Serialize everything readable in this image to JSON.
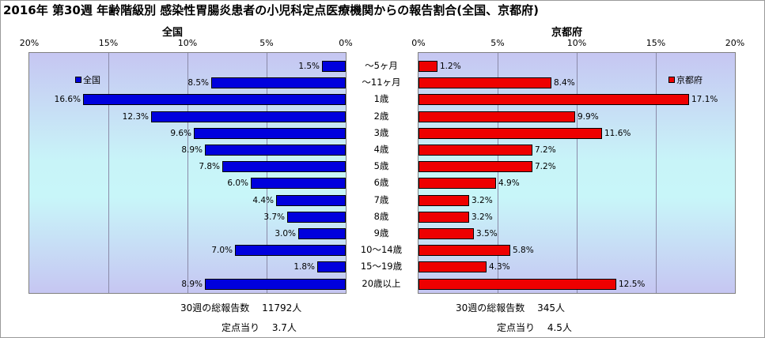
{
  "title": "2016年 第30週 年齢階級別 感染性胃腸炎患者の小児科定点医療機関からの報告割合(全国、京都府)",
  "colors": {
    "national": "#0000dd",
    "kyoto": "#ee0000"
  },
  "chart_data": [
    {
      "type": "bar",
      "orientation": "horizontal-reversed",
      "title": "全国",
      "legend": "全国",
      "legend_position": "top-left",
      "tick_labels": [
        "20%",
        "15%",
        "10%",
        "5%",
        "0%"
      ],
      "xlim": [
        0,
        20
      ],
      "categories": [
        "～5ヶ月",
        "～11ヶ月",
        "1歳",
        "2歳",
        "3歳",
        "4歳",
        "5歳",
        "6歳",
        "7歳",
        "8歳",
        "9歳",
        "10～14歳",
        "15～19歳",
        "20歳以上"
      ],
      "values": [
        1.5,
        8.5,
        16.6,
        12.3,
        9.6,
        8.9,
        7.8,
        6.0,
        4.4,
        3.7,
        3.0,
        7.0,
        1.8,
        8.9
      ],
      "value_labels": [
        "1.5%",
        "8.5%",
        "16.6%",
        "12.3%",
        "9.6%",
        "8.9%",
        "7.8%",
        "6.0%",
        "4.4%",
        "3.7%",
        "3.0%",
        "7.0%",
        "1.8%",
        "8.9%"
      ],
      "grid": true
    },
    {
      "type": "bar",
      "orientation": "horizontal",
      "title": "京都府",
      "legend": "京都府",
      "legend_position": "top-right",
      "tick_labels": [
        "0%",
        "5%",
        "10%",
        "15%",
        "20%"
      ],
      "xlim": [
        0,
        20
      ],
      "categories": [
        "～5ヶ月",
        "～11ヶ月",
        "1歳",
        "2歳",
        "3歳",
        "4歳",
        "5歳",
        "6歳",
        "7歳",
        "8歳",
        "9歳",
        "10～14歳",
        "15～19歳",
        "20歳以上"
      ],
      "values": [
        1.2,
        8.4,
        17.1,
        9.9,
        11.6,
        7.2,
        7.2,
        4.9,
        3.2,
        3.2,
        3.5,
        5.8,
        4.3,
        12.5
      ],
      "value_labels": [
        "1.2%",
        "8.4%",
        "17.1%",
        "9.9%",
        "11.6%",
        "7.2%",
        "7.2%",
        "4.9%",
        "3.2%",
        "3.2%",
        "3.5%",
        "5.8%",
        "4.3%",
        "12.5%"
      ],
      "grid": true
    }
  ],
  "footer": {
    "national_total": "30週の総報告数　 11792人",
    "national_per": "定点当り　 3.7人",
    "kyoto_total": "30週の総報告数　 345人",
    "kyoto_per": "定点当り　 4.5人"
  }
}
